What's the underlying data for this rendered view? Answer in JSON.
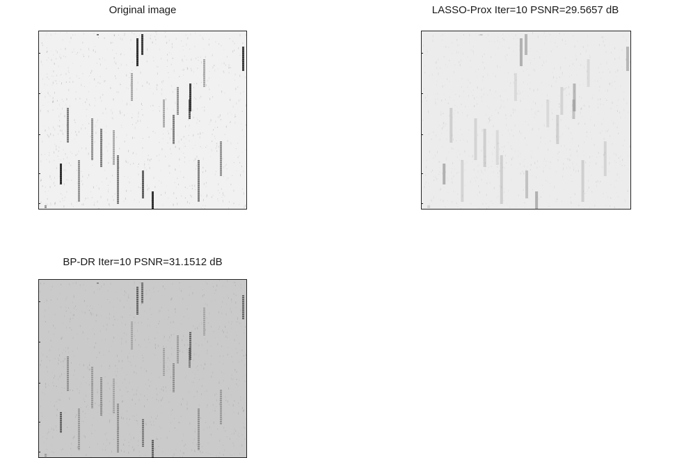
{
  "panels": [
    {
      "id": "original",
      "title": "Original image",
      "bg": "#f1f1f1",
      "mark": "#3a3a3a",
      "style": "sharp"
    },
    {
      "id": "lasso",
      "title": "LASSO-Prox Iter=10 PSNR=29.5657 dB",
      "bg": "#ececec",
      "mark": "#8a8a8a",
      "style": "blur"
    },
    {
      "id": "bpdr",
      "title": "BP-DR Iter=10 PSNR=31.1512 dB",
      "bg": "#cacaca",
      "mark": "#5a5a5a",
      "style": "mixed"
    }
  ]
}
